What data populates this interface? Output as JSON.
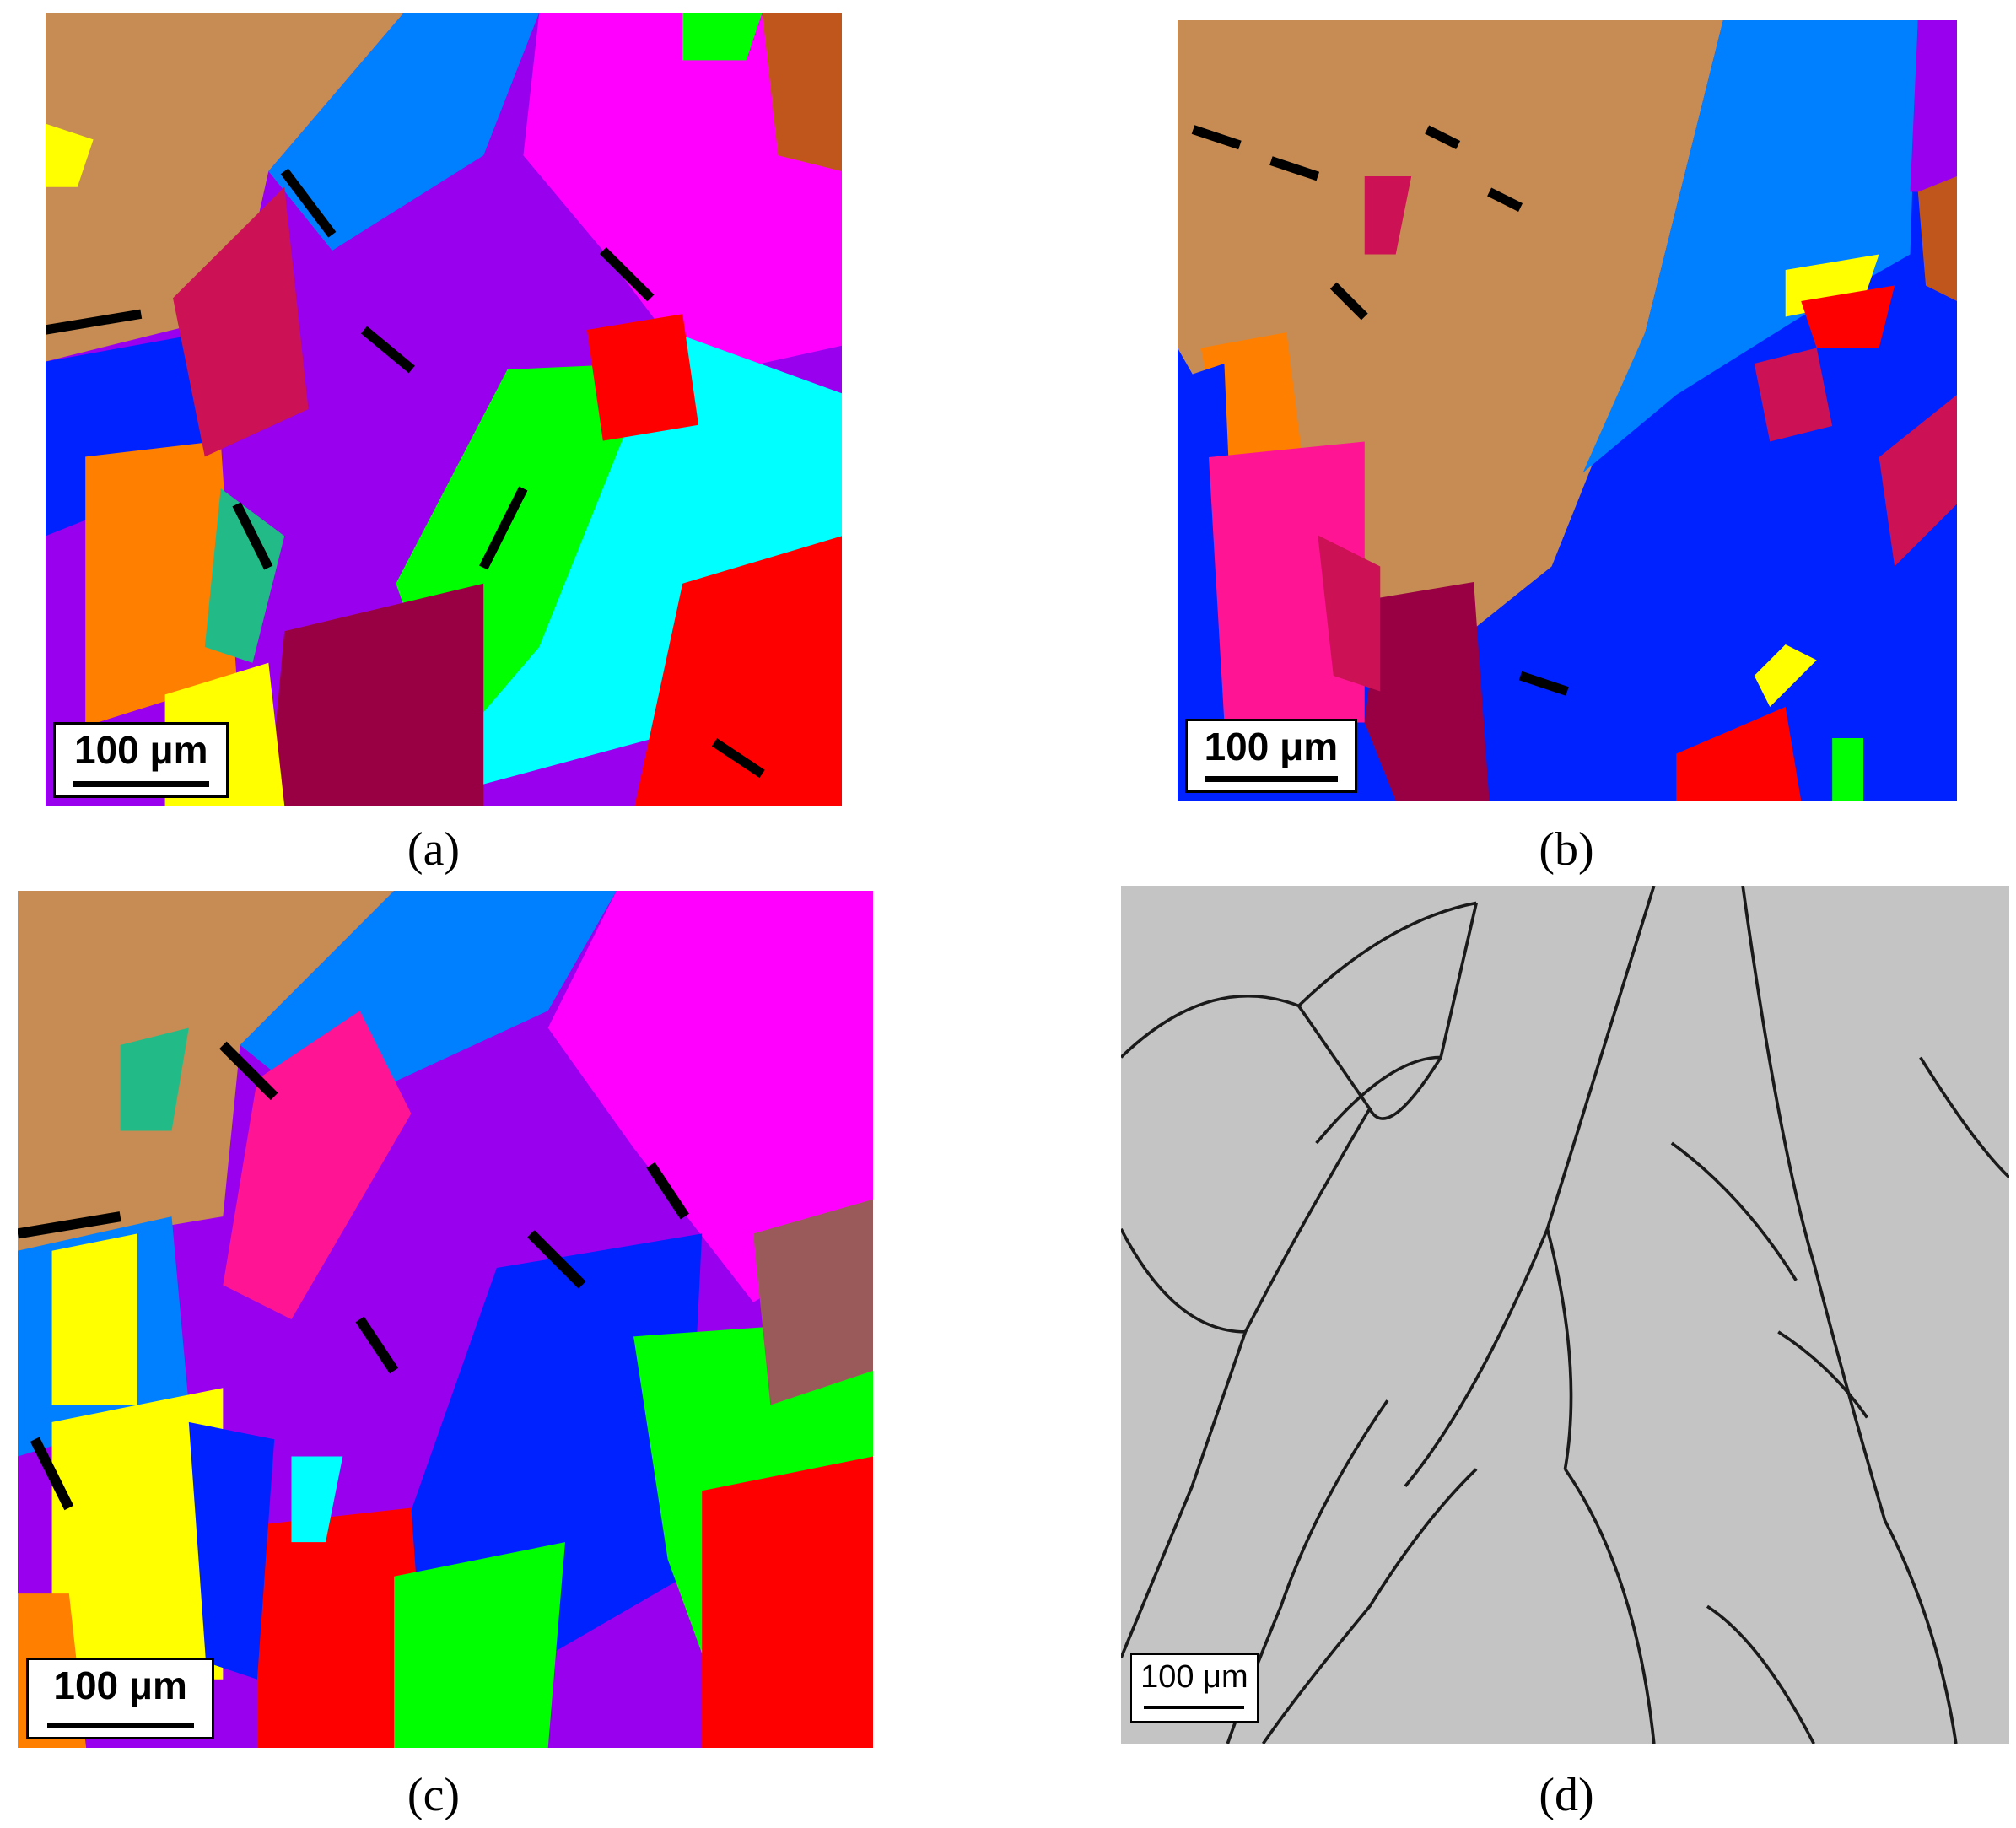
{
  "panels": [
    {
      "label": "(a)",
      "scale_bar": "100 μm"
    },
    {
      "label": "(b)",
      "scale_bar": "100 μm"
    },
    {
      "label": "(c)",
      "scale_bar": "100 μm"
    },
    {
      "label": "(d)",
      "scale_bar": "100 μm"
    }
  ]
}
